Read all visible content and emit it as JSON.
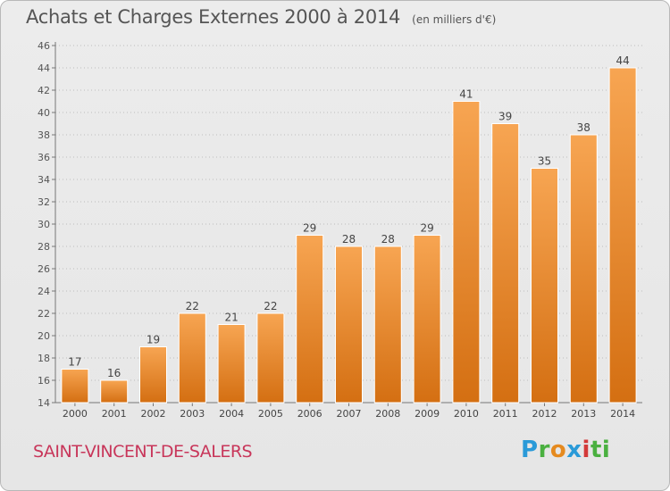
{
  "header": {
    "title": "Achats et Charges Externes 2000 à 2014",
    "unit": "(en milliers d'€)"
  },
  "footer": {
    "commune": "SAINT-VINCENT-DE-SALERS",
    "logo": "Proxiti"
  },
  "colors": {
    "bar_top": "#f7a552",
    "bar_bottom": "#d46f12",
    "commune": "#c8365a"
  },
  "chart_data": {
    "type": "bar",
    "title": "Achats et Charges Externes 2000 à 2014",
    "subtitle": "(en milliers d'€)",
    "categories": [
      "2000",
      "2001",
      "2002",
      "2003",
      "2004",
      "2005",
      "2006",
      "2007",
      "2008",
      "2009",
      "2010",
      "2011",
      "2012",
      "2013",
      "2014"
    ],
    "values": [
      17,
      16,
      19,
      22,
      21,
      22,
      29,
      28,
      28,
      29,
      41,
      39,
      35,
      38,
      44
    ],
    "ylim": [
      14,
      46
    ],
    "yticks": [
      14,
      16,
      18,
      20,
      22,
      24,
      26,
      28,
      30,
      32,
      34,
      36,
      38,
      40,
      42,
      44,
      46
    ],
    "grid": "horizontal-dotted",
    "xlabel": "",
    "ylabel": ""
  }
}
